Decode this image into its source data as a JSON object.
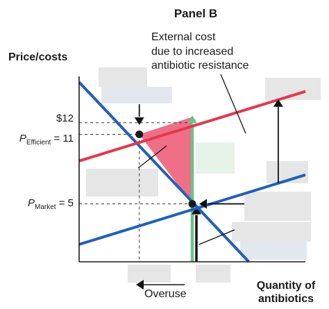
{
  "chart_data": {
    "type": "line",
    "title": "Panel B",
    "ylabel": "Price/costs",
    "xlabel_line1": "Quantity of",
    "xlabel_line2": "antibiotics",
    "annotation_lines": [
      "External cost",
      "due to increased",
      "antibiotic resistance"
    ],
    "overuse_label": "Overuse",
    "y_ticks": [
      {
        "value": 12,
        "label": "$12"
      },
      {
        "value": 11,
        "label_main": "P",
        "label_sub": "Efficient",
        "label_rest": " = 11"
      },
      {
        "value": 5,
        "label_main": "P",
        "label_sub": "Market",
        "label_rest": " = 5"
      }
    ],
    "ylim": [
      0,
      16
    ],
    "xlim": [
      0,
      100
    ],
    "series": [
      {
        "color": "#1f5fbf",
        "points": [
          [
            0,
            15.5
          ],
          [
            75,
            0
          ]
        ]
      },
      {
        "color": "#1f5fbf",
        "points": [
          [
            0,
            1.5
          ],
          [
            100,
            7.5
          ]
        ]
      },
      {
        "color": "#e8364a",
        "points": [
          [
            0,
            8.7
          ],
          [
            100,
            14.7
          ]
        ]
      }
    ],
    "points": [
      {
        "x": 26.6,
        "y": 11
      },
      {
        "x": 50,
        "y": 5
      }
    ],
    "deadweight_loss": {
      "color": "#ef6f86",
      "vertices": [
        [
          26.6,
          11
        ],
        [
          50,
          12.5
        ],
        [
          50,
          5
        ]
      ]
    },
    "colors": {
      "demand": "#1f5fbf",
      "private_cost": "#1f5fbf",
      "social_cost": "#e8364a",
      "dwl": "#ef6f86",
      "green_arrow": "#6cc08a",
      "axis": "#1a1a1a"
    }
  }
}
